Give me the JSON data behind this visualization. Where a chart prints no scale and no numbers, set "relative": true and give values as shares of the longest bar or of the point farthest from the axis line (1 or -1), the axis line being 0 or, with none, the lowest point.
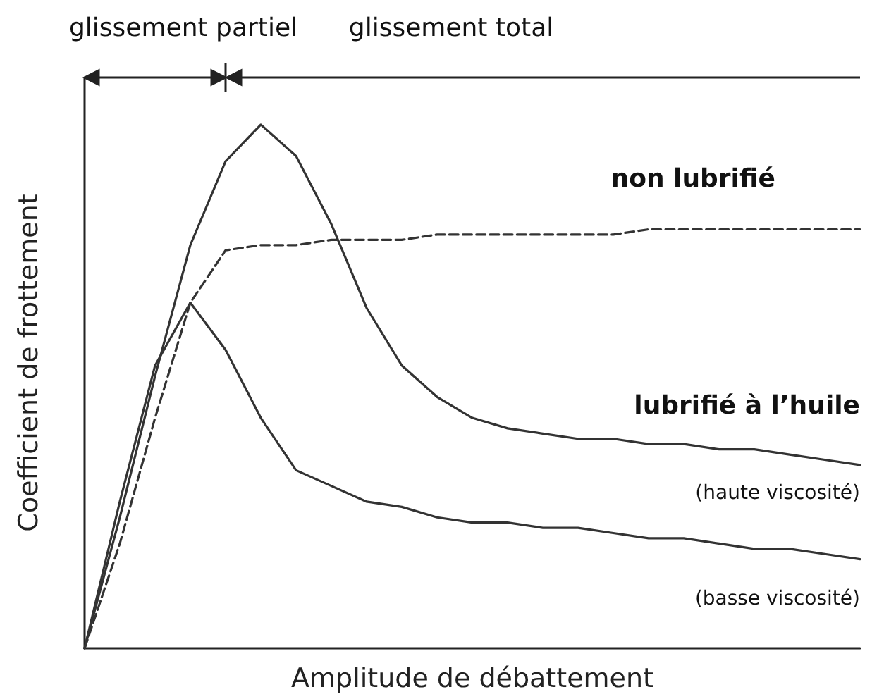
{
  "chart_data": {
    "type": "line",
    "relative": true,
    "xlabel": "Amplitude de débattement",
    "ylabel": "Coefficient de frottement",
    "categories": [
      null,
      null,
      null,
      null,
      null,
      null,
      null,
      null,
      null,
      null,
      null,
      null,
      null,
      null,
      null,
      null,
      null,
      null,
      null,
      null,
      null,
      null,
      null
    ],
    "annotations": [
      "glissement partiel",
      "glissement total",
      "lubrifié à l’huile"
    ],
    "marker": "none",
    "grid": false,
    "legend": false,
    "series": [
      {
        "name": "non lubrifié",
        "color": "#333333",
        "line_style": "dashed",
        "values": [
          0,
          0.2,
          0.44,
          0.66,
          0.76,
          0.77,
          0.77,
          0.78,
          0.78,
          0.78,
          0.79,
          0.79,
          0.79,
          0.79,
          0.79,
          0.79,
          0.8,
          0.8,
          0.8,
          0.8,
          0.8,
          0.8,
          0.8
        ]
      },
      {
        "name": "(haute viscosité)",
        "color": "#333333",
        "line_style": "solid",
        "values": [
          0,
          0.25,
          0.52,
          0.77,
          0.93,
          1,
          0.94,
          0.81,
          0.65,
          0.54,
          0.48,
          0.44,
          0.42,
          0.41,
          0.4,
          0.4,
          0.39,
          0.39,
          0.38,
          0.38,
          0.37,
          0.36,
          0.35
        ]
      },
      {
        "name": "(basse viscosité)",
        "color": "#333333",
        "line_style": "solid",
        "values": [
          0,
          0.28,
          0.54,
          0.66,
          0.57,
          0.44,
          0.34,
          0.31,
          0.28,
          0.27,
          0.25,
          0.24,
          0.24,
          0.23,
          0.23,
          0.22,
          0.21,
          0.21,
          0.2,
          0.19,
          0.19,
          0.18,
          0.17
        ]
      }
    ]
  }
}
